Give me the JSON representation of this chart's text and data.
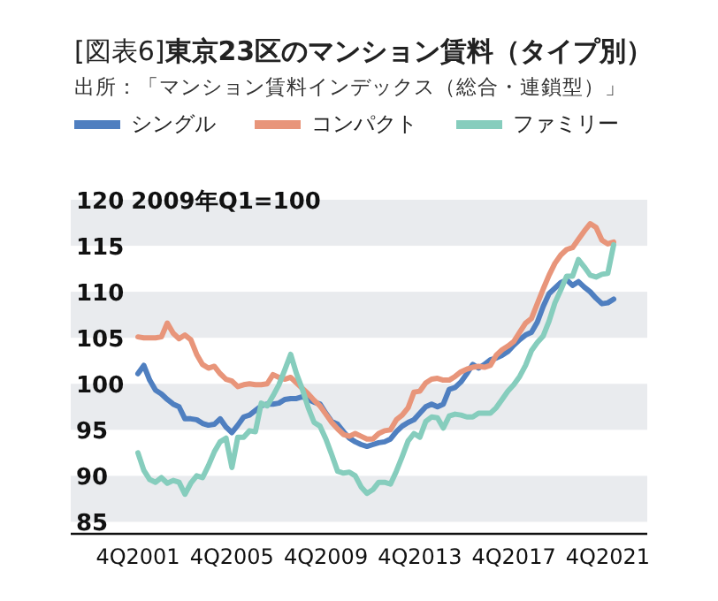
{
  "chart_data": {
    "type": "line",
    "title": "[図表6]**東京23区のマンション賃料（タイプ別）**",
    "ylabel": "2009年Q1=100",
    "annotations": [
      "出所：「マンション賃料インデックス（総合・連鎖型）」"
    ],
    "legend": "top",
    "bands": [
      {
        "axis": "y",
        "from": 115,
        "to": 120,
        "color": "#e9ebee"
      },
      {
        "axis": "y",
        "from": 105,
        "to": 110,
        "color": "#e9ebee"
      },
      {
        "axis": "y",
        "from": 95,
        "to": 100,
        "color": "#e9ebee"
      },
      {
        "axis": "y",
        "from": 85,
        "to": 90,
        "color": "#e9ebee"
      }
    ],
    "categories": [
      "4Q2001",
      null,
      null,
      null,
      null,
      null,
      null,
      null,
      null,
      null,
      null,
      null,
      null,
      null,
      null,
      null,
      "4Q2005",
      null,
      null,
      null,
      null,
      null,
      null,
      null,
      null,
      null,
      null,
      null,
      null,
      null,
      null,
      null,
      "4Q2009",
      null,
      null,
      null,
      null,
      null,
      null,
      null,
      null,
      null,
      null,
      null,
      null,
      null,
      null,
      null,
      "4Q2013",
      null,
      null,
      null,
      null,
      null,
      null,
      null,
      null,
      null,
      null,
      null,
      null,
      null,
      null,
      null,
      "4Q2017",
      null,
      null,
      null,
      null,
      null,
      null,
      null,
      null,
      null,
      null,
      null,
      null,
      null,
      null,
      null,
      "4Q2021",
      null
    ],
    "ylim": [
      83.7,
      120
    ],
    "yticks": [
      85,
      90,
      95,
      100,
      105,
      110,
      115,
      120
    ],
    "series": [
      {
        "name": "シングル",
        "color": "#4f7fc0",
        "values": [
          101.1,
          102.0,
          100.4,
          99.3,
          98.9,
          98.3,
          97.8,
          97.5,
          96.2,
          96.2,
          96.1,
          95.7,
          95.5,
          95.6,
          96.2,
          95.3,
          94.7,
          95.5,
          96.4,
          96.6,
          97.1,
          97.6,
          97.8,
          97.8,
          97.9,
          98.3,
          98.4,
          98.4,
          98.6,
          98.3,
          98.0,
          97.8,
          96.8,
          95.9,
          95.6,
          94.8,
          94.1,
          93.7,
          93.4,
          93.2,
          93.4,
          93.6,
          93.7,
          94.0,
          94.8,
          95.4,
          95.8,
          96.1,
          96.8,
          97.5,
          97.8,
          97.5,
          97.8,
          99.4,
          99.6,
          100.2,
          101.1,
          102.1,
          101.7,
          102.1,
          102.6,
          102.8,
          103.1,
          103.5,
          104.2,
          104.8,
          105.3,
          105.6,
          106.7,
          108.4,
          109.8,
          110.4,
          111.0,
          111.3,
          110.7,
          111.1,
          110.5,
          110.0,
          109.3,
          108.7,
          108.8,
          109.2
        ]
      },
      {
        "name": "コンパクト",
        "color": "#e8957a",
        "values": [
          105.1,
          105.0,
          105.0,
          105.0,
          105.1,
          106.6,
          105.5,
          104.9,
          105.3,
          104.8,
          103.2,
          102.1,
          101.7,
          101.9,
          101.1,
          100.5,
          100.3,
          99.7,
          99.9,
          100.0,
          99.9,
          99.9,
          100.0,
          101.0,
          100.7,
          100.5,
          100.7,
          100.1,
          99.5,
          98.9,
          98.2,
          97.6,
          96.7,
          95.8,
          95.1,
          94.5,
          94.3,
          94.6,
          94.3,
          94.0,
          94.0,
          94.6,
          94.9,
          95.0,
          96.1,
          96.6,
          97.4,
          99.1,
          99.2,
          100.1,
          100.5,
          100.6,
          100.4,
          100.4,
          100.8,
          101.3,
          101.6,
          101.8,
          101.9,
          101.8,
          102.0,
          103.1,
          103.7,
          104.1,
          104.6,
          105.6,
          106.6,
          107.1,
          108.7,
          110.3,
          111.8,
          113.1,
          114.0,
          114.6,
          114.8,
          115.7,
          116.6,
          117.4,
          117.0,
          115.6,
          115.2,
          115.4
        ]
      },
      {
        "name": "ファミリー",
        "color": "#86cdbd",
        "values": [
          92.5,
          90.6,
          89.6,
          89.3,
          89.8,
          89.2,
          89.5,
          89.3,
          88.0,
          89.2,
          90.0,
          89.8,
          91.1,
          92.6,
          93.7,
          94.1,
          90.9,
          94.2,
          94.2,
          94.9,
          94.8,
          97.9,
          97.6,
          98.7,
          99.9,
          101.5,
          103.2,
          101.1,
          99.4,
          97.4,
          95.8,
          95.4,
          94.0,
          92.3,
          90.5,
          90.3,
          90.4,
          90.0,
          88.8,
          88.1,
          88.5,
          89.3,
          89.3,
          89.1,
          90.5,
          92.1,
          93.8,
          94.6,
          94.2,
          95.9,
          96.4,
          96.3,
          95.2,
          96.5,
          96.7,
          96.6,
          96.4,
          96.4,
          96.8,
          96.8,
          96.8,
          97.4,
          98.3,
          99.2,
          99.9,
          100.8,
          102.0,
          103.6,
          104.5,
          105.2,
          106.8,
          108.8,
          110.2,
          111.7,
          111.7,
          113.5,
          112.7,
          111.8,
          111.6,
          111.9,
          112.0,
          115.1
        ]
      }
    ]
  }
}
